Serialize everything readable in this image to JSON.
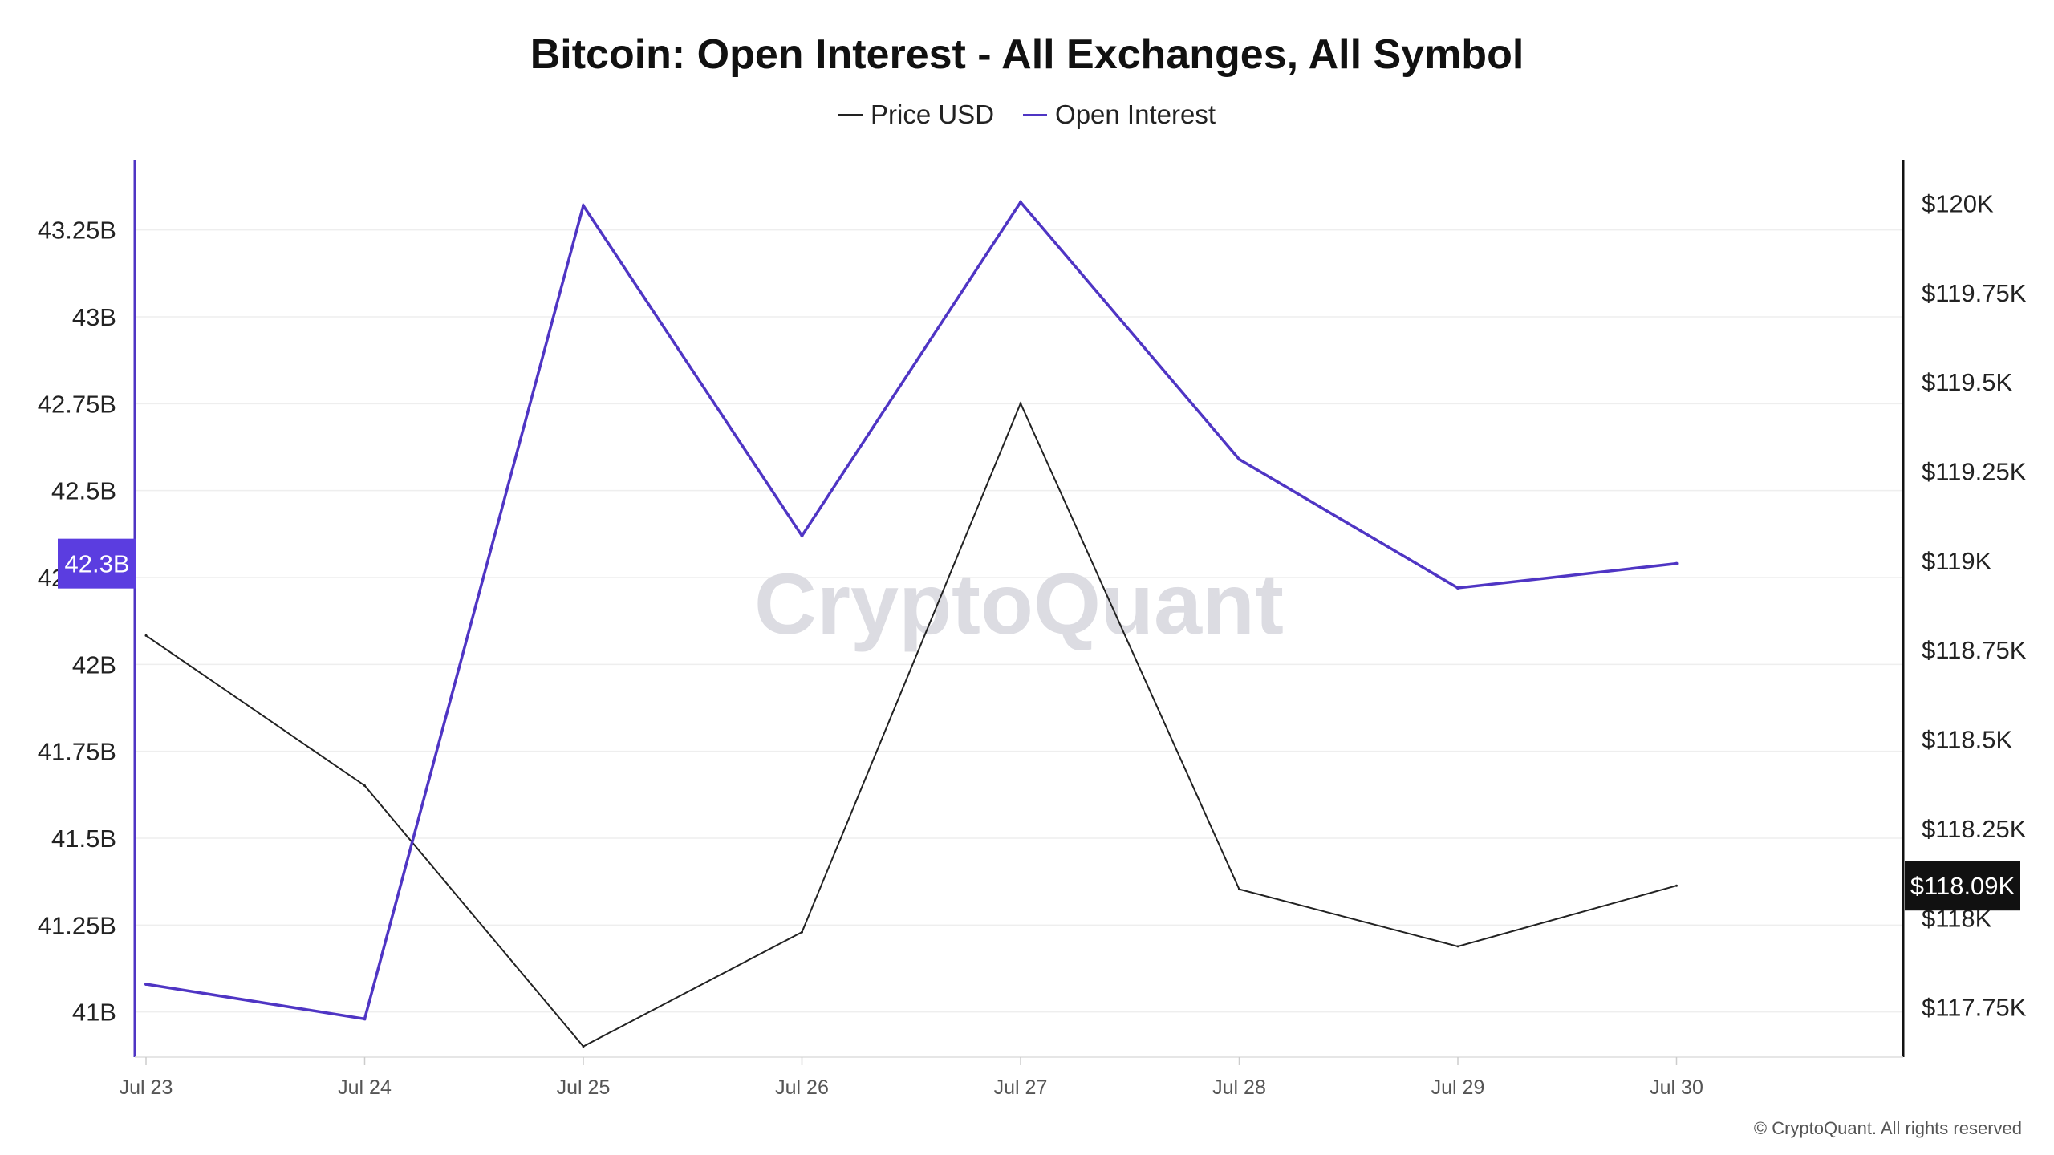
{
  "colors": {
    "price": "#222222",
    "open_interest": "#4f35c4",
    "oi_badge": "#5b3de0",
    "price_badge": "#111111",
    "grid": "#eeeeee",
    "watermark": "#dcdce2"
  },
  "watermark": "CryptoQuant",
  "copyright": "© CryptoQuant. All rights reserved",
  "chart_data": {
    "type": "line",
    "title": "Bitcoin: Open Interest - All Exchanges, All Symbol",
    "legend_placement": "top-center",
    "grid": true,
    "categories": [
      "Jul 23",
      "Jul 24",
      "Jul 25",
      "Jul 26",
      "Jul 27",
      "Jul 28",
      "Jul 29",
      "Jul 30"
    ],
    "left_axis": {
      "ticks": [
        41,
        41.25,
        41.5,
        41.75,
        42,
        42.25,
        42.5,
        42.75,
        43,
        43.25
      ],
      "tick_labels": [
        "41B",
        "41.25B",
        "41.5B",
        "41.75B",
        "42B",
        "42.25B",
        "42.5B",
        "42.75B",
        "43B",
        "43.25B"
      ],
      "ylim": [
        40.87,
        43.45
      ]
    },
    "right_axis": {
      "ticks": [
        117750,
        118000,
        118250,
        118500,
        118750,
        119000,
        119250,
        119500,
        119750,
        120000
      ],
      "tick_labels": [
        "$117.75K",
        "$118K",
        "$118.25K",
        "$118.5K",
        "$118.75K",
        "$119K",
        "$119.25K",
        "$119.5K",
        "$119.75K",
        "$120K"
      ],
      "ylim": [
        117610,
        120120
      ]
    },
    "series": [
      {
        "name": "Price USD",
        "axis": "right",
        "values": [
          118790,
          118370,
          117640,
          117960,
          119440,
          118080,
          117920,
          118090
        ]
      },
      {
        "name": "Open Interest",
        "axis": "left",
        "values": [
          41.08,
          40.98,
          43.32,
          42.37,
          43.33,
          42.59,
          42.22,
          42.29
        ]
      }
    ],
    "current_value_labels": {
      "open_interest": "42.3B",
      "price": "$118.09K"
    }
  }
}
